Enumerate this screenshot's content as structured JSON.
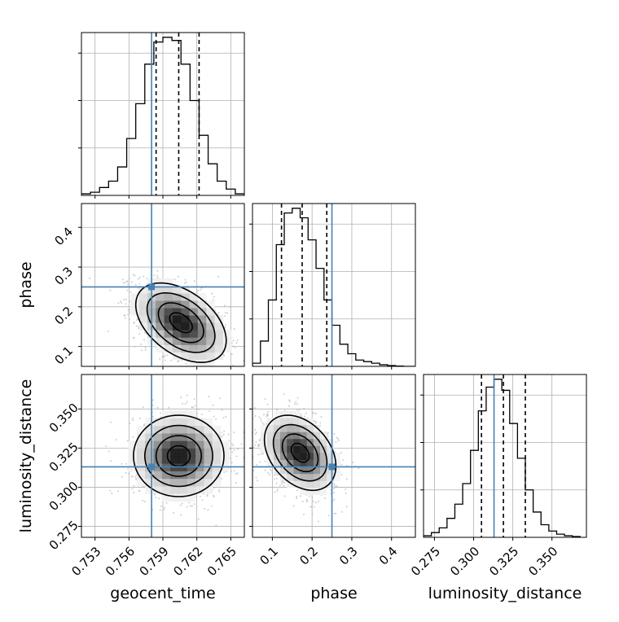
{
  "chart_data": {
    "type": "corner",
    "parameters": [
      {
        "name": "geocent_time",
        "label": "geocent_time",
        "range": [
          0.7518,
          0.7662
        ],
        "ticks": [
          0.753,
          0.756,
          0.759,
          0.762,
          0.765
        ],
        "tick_labels": [
          "0.753",
          "0.756",
          "0.759",
          "0.762",
          "0.765"
        ],
        "truth": 0.758,
        "quantiles": [
          0.7584,
          0.7604,
          0.7622
        ]
      },
      {
        "name": "phase",
        "label": "phase",
        "range": [
          0.05,
          0.46
        ],
        "ticks": [
          0.1,
          0.2,
          0.3,
          0.4
        ],
        "tick_labels": [
          "0.1",
          "0.2",
          "0.3",
          "0.4"
        ],
        "truth": 0.25,
        "quantiles": [
          0.123,
          0.175,
          0.237
        ]
      },
      {
        "name": "luminosity_distance",
        "label": "luminosity_distance",
        "range": [
          0.268,
          0.372
        ],
        "ticks": [
          0.275,
          0.3,
          0.325,
          0.35
        ],
        "tick_labels": [
          "0.275",
          "0.300",
          "0.325",
          "0.350"
        ],
        "truth": 0.313,
        "quantiles": [
          0.305,
          0.319,
          0.333
        ]
      }
    ],
    "histograms": [
      {
        "parameter": "geocent_time",
        "bin_edges": [
          0.7518,
          0.7526,
          0.7534,
          0.7542,
          0.755,
          0.7558,
          0.7566,
          0.7574,
          0.7582,
          0.759,
          0.7598,
          0.7606,
          0.7614,
          0.7622,
          0.763,
          0.7638,
          0.7646,
          0.7654,
          0.7662
        ],
        "density": [
          0.01,
          0.02,
          0.05,
          0.09,
          0.18,
          0.36,
          0.58,
          0.83,
          0.97,
          1.0,
          0.98,
          0.83,
          0.6,
          0.38,
          0.2,
          0.09,
          0.04,
          0.01
        ]
      },
      {
        "parameter": "phase",
        "bin_edges": [
          0.05,
          0.07,
          0.09,
          0.11,
          0.13,
          0.15,
          0.17,
          0.19,
          0.21,
          0.23,
          0.25,
          0.27,
          0.29,
          0.31,
          0.33,
          0.35,
          0.37,
          0.39,
          0.41,
          0.43,
          0.46
        ],
        "density": [
          0.02,
          0.16,
          0.42,
          0.77,
          0.97,
          1.0,
          0.94,
          0.8,
          0.62,
          0.42,
          0.26,
          0.14,
          0.08,
          0.04,
          0.03,
          0.02,
          0.01,
          0.005,
          0.002,
          0.0
        ]
      },
      {
        "parameter": "luminosity_distance",
        "bin_edges": [
          0.268,
          0.273,
          0.278,
          0.283,
          0.288,
          0.293,
          0.298,
          0.303,
          0.308,
          0.313,
          0.318,
          0.323,
          0.328,
          0.333,
          0.338,
          0.343,
          0.348,
          0.353,
          0.358,
          0.363,
          0.368
        ],
        "density": [
          0.01,
          0.03,
          0.06,
          0.12,
          0.21,
          0.34,
          0.55,
          0.8,
          0.95,
          1.0,
          0.93,
          0.72,
          0.5,
          0.3,
          0.16,
          0.08,
          0.04,
          0.02,
          0.01,
          0.005
        ]
      }
    ],
    "pairs": [
      {
        "x": "geocent_time",
        "y": "phase",
        "center": [
          0.7606,
          0.16
        ],
        "sigma": [
          0.002,
          0.05
        ],
        "rho": -0.45
      },
      {
        "x": "geocent_time",
        "y": "luminosity_distance",
        "center": [
          0.7604,
          0.32
        ],
        "sigma": [
          0.002,
          0.013
        ],
        "rho": 0.0
      },
      {
        "x": "phase",
        "y": "luminosity_distance",
        "center": [
          0.17,
          0.322
        ],
        "sigma": [
          0.045,
          0.012
        ],
        "rho": -0.35
      }
    ],
    "contour_levels_sigma": [
      0.5,
      1.0,
      1.5,
      2.0
    ],
    "colors": {
      "truth": "#4682b4",
      "hist": "#000000",
      "quantile": "#000000",
      "grid": "#b0b0b0",
      "points": "#b9b9b9"
    },
    "grid": true,
    "quantile_style": "dashed"
  }
}
